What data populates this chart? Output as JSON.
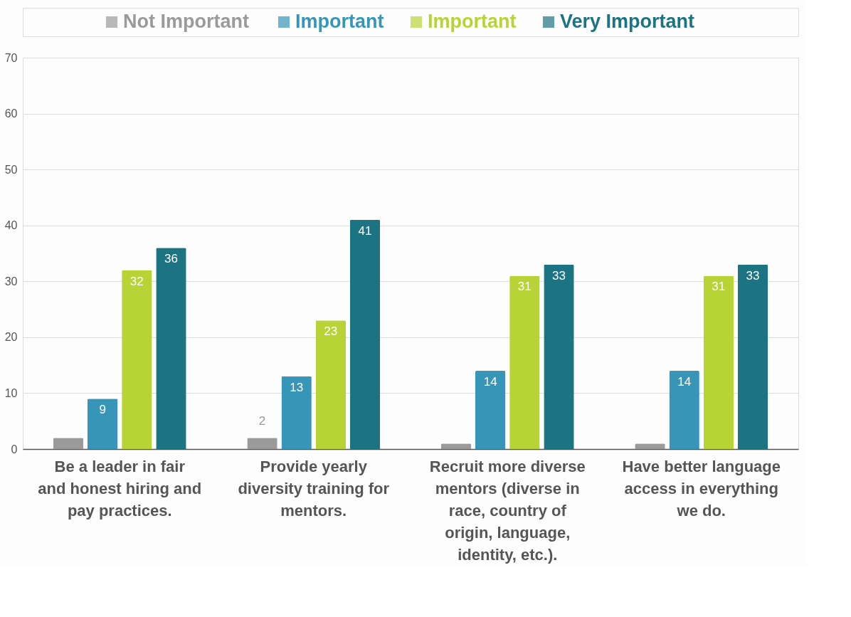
{
  "chart_data": {
    "type": "bar",
    "categories": [
      "Be a leader in fair and honest hiring and pay practices.",
      "Provide yearly diversity training for mentors.",
      "Recruit more diverse mentors (diverse in race, country of origin, language, identity, etc.).",
      "Have better language access in everything we do."
    ],
    "series": [
      {
        "name": "Not Important",
        "color": "#9a9a9a",
        "values": [
          2,
          2,
          1,
          1
        ],
        "value_labels": [
          null,
          "2",
          null,
          null
        ]
      },
      {
        "name": "Important",
        "color": "#3796b8",
        "values": [
          9,
          13,
          14,
          14
        ],
        "value_labels": [
          "9",
          "13",
          "14",
          "14"
        ]
      },
      {
        "name": "Important",
        "color": "#b8d335",
        "values": [
          32,
          23,
          31,
          31
        ],
        "value_labels": [
          "32",
          "23",
          "31",
          "31"
        ]
      },
      {
        "name": "Very Important",
        "color": "#1c7483",
        "values": [
          36,
          41,
          33,
          33
        ],
        "value_labels": [
          "36",
          "41",
          "33",
          "33"
        ]
      }
    ],
    "ylim": [
      0,
      70
    ],
    "yticks": [
      0,
      10,
      20,
      30,
      40,
      50,
      60,
      70
    ],
    "grid": "y",
    "legend": "top"
  }
}
